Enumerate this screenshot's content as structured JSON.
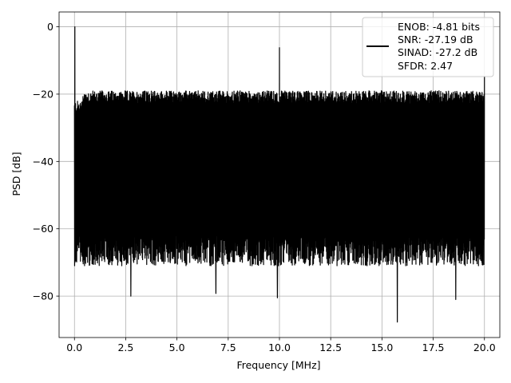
{
  "chart_data": {
    "type": "line",
    "title": "",
    "xlabel": "Frequency [MHz]",
    "ylabel": "PSD [dB]",
    "xlim": [
      -0.75,
      20.75
    ],
    "ylim": [
      -92.3,
      4.4
    ],
    "xticks": [
      0.0,
      2.5,
      5.0,
      7.5,
      10.0,
      12.5,
      15.0,
      17.5,
      20.0
    ],
    "xtick_labels": [
      "0.0",
      "2.5",
      "5.0",
      "7.5",
      "10.0",
      "12.5",
      "15.0",
      "17.5",
      "20.0"
    ],
    "yticks": [
      0,
      -20,
      -40,
      -60,
      -80
    ],
    "ytick_labels": [
      "0",
      "−20",
      "−40",
      "−60",
      "−80"
    ],
    "grid": true,
    "legend_position": "top-right",
    "legend": [
      "ENOB: -4.81 bits",
      "SNR: -27.19 dB",
      "SINAD: -27.2 dB",
      "SFDR: 2.47"
    ],
    "series": [
      {
        "color": "#000000",
        "x_range": [
          0.0,
          20.0
        ],
        "noise_floor_upper_db": -21,
        "noise_floor_lower_db": -65,
        "spectral_peaks": [
          {
            "x": 0.02,
            "y": 0.0
          },
          {
            "x": 10.0,
            "y": -6.2
          },
          {
            "x": 20.0,
            "y": -14.7
          }
        ],
        "deep_dips": [
          {
            "x": 2.75,
            "y": -80.0
          },
          {
            "x": 6.9,
            "y": -79.2
          },
          {
            "x": 9.9,
            "y": -80.5
          },
          {
            "x": 15.75,
            "y": -87.7
          },
          {
            "x": 18.6,
            "y": -81.0
          }
        ]
      }
    ]
  }
}
